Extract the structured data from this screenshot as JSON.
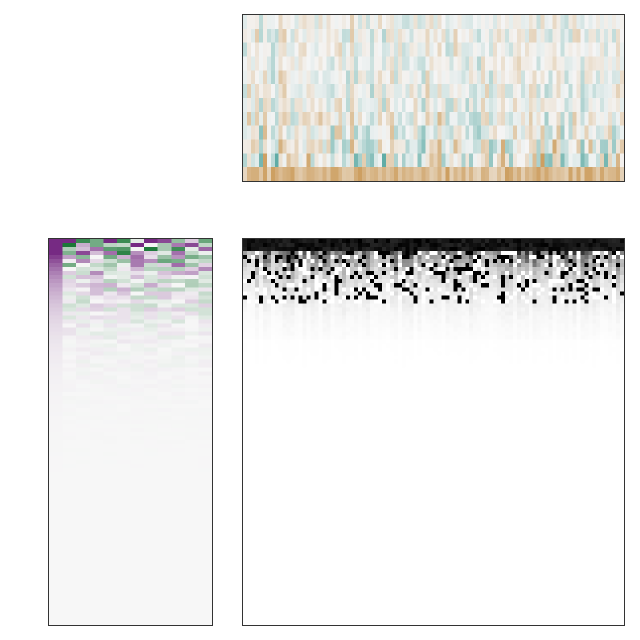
{
  "chart_data": [
    {
      "type": "heatmap",
      "id": "top-heatmap",
      "title": "",
      "colormap": "BrBG",
      "rows": 12,
      "cols": 96,
      "value_range": [
        -1,
        1
      ],
      "row_profile": [
        0.12,
        0.14,
        0.13,
        0.12,
        0.14,
        0.15,
        0.16,
        0.18,
        0.2,
        0.24,
        0.3,
        0.55
      ],
      "note_colors": {
        "low": "#35978f",
        "mid": "#f5f5f5",
        "high": "#bf812d"
      }
    },
    {
      "type": "heatmap",
      "id": "left-heatmap",
      "title": "",
      "colormap": "PRGn",
      "rows": 96,
      "cols": 12,
      "value_range": [
        -1,
        1
      ],
      "row_profile_decay": 0.11,
      "note_colors": {
        "low": "#762a83",
        "mid": "#f7f7f7",
        "high": "#1b7837"
      }
    },
    {
      "type": "heatmap",
      "id": "main-heatmap",
      "title": "",
      "colormap": "Greys",
      "rows": 96,
      "cols": 96,
      "value_range": [
        0,
        1
      ],
      "row_profile_decay": 0.18,
      "note_colors": {
        "low": "#ffffff",
        "high": "#000000"
      }
    }
  ]
}
